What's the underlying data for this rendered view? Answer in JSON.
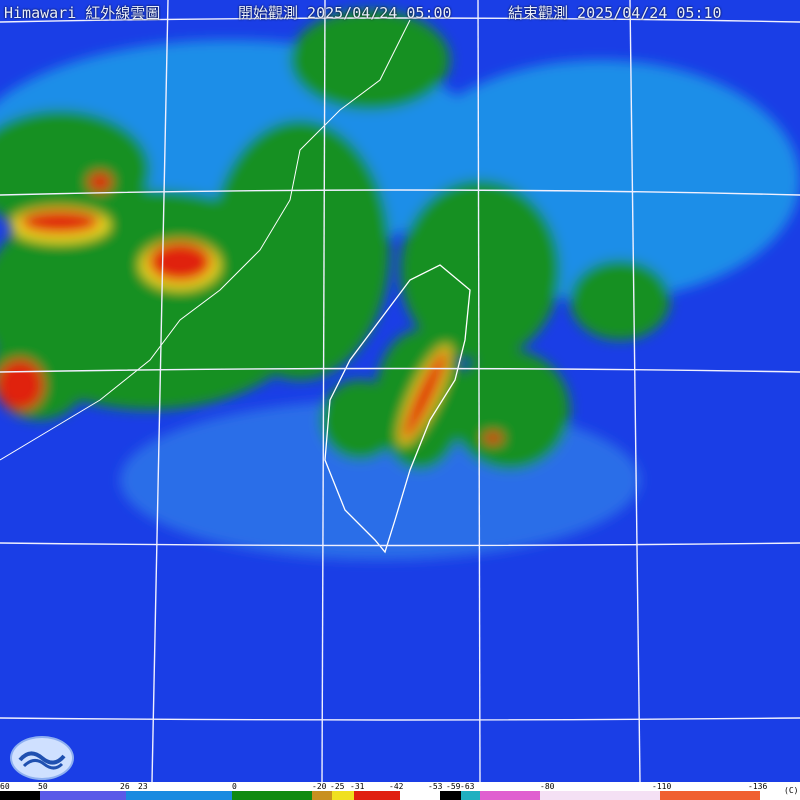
{
  "header": {
    "title": "Himawari 紅外線雲圖",
    "start_label": "開始觀測",
    "start_time": "2025/04/24 05:00",
    "end_label": "結束觀測",
    "end_time": "2025/04/24 05:10"
  },
  "logo": {
    "icon": "cwa-logo"
  },
  "colorbar": {
    "unit": "(C)",
    "ticks": [
      "60",
      "50",
      "26",
      "23",
      "0",
      "-20",
      "-25",
      "-31",
      "-42",
      "-53",
      "-59",
      "-63",
      "-80",
      "-110",
      "-136"
    ],
    "colors": [
      "#000000",
      "#5a5ae8",
      "#1a2fd0",
      "#1a8ae0",
      "#108a10",
      "#60c020",
      "#c89020",
      "#f0e020",
      "#e02010",
      "#ffffff",
      "#000000",
      "#20b0c0",
      "#e060d0",
      "#f0d0f0",
      "#f06030"
    ]
  }
}
